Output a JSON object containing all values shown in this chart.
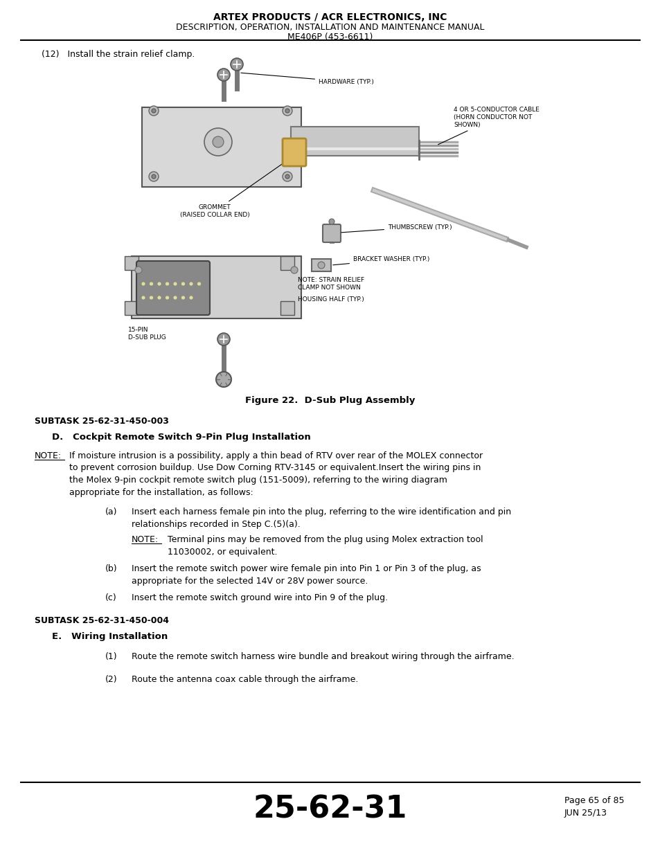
{
  "header_line1": "ARTEX PRODUCTS / ACR ELECTRONICS, INC",
  "header_line2": "DESCRIPTION, OPERATION, INSTALLATION AND MAINTENANCE MANUAL",
  "header_line3": "ME406P (453-6611)",
  "intro_text": "(12)   Install the strain relief clamp.",
  "figure_caption": "Figure 22.  D-Sub Plug Assembly",
  "subtask1": "SUBTASK 25-62-31-450-003",
  "section_d_title": "D.   Cockpit Remote Switch 9-Pin Plug Installation",
  "note1_text": "If moisture intrusion is a possibility, apply a thin bead of RTV over rear of the MOLEX connector\nto prevent corrosion buildup. Use Dow Corning RTV-3145 or equivalent.Insert the wiring pins in\nthe Molex 9-pin cockpit remote switch plug (151-5009), referring to the wiring diagram\nappropriate for the installation, as follows:",
  "item_a_label": "(a)",
  "item_a_text": "Insert each harness female pin into the plug, referring to the wire identification and pin\nrelationships recorded in Step C.(5)(a).",
  "note2_text": "Terminal pins may be removed from the plug using Molex extraction tool\n11030002, or equivalent.",
  "item_b_label": "(b)",
  "item_b_text": "Insert the remote switch power wire female pin into Pin 1 or Pin 3 of the plug, as\nappropriate for the selected 14V or 28V power source.",
  "item_c_label": "(c)",
  "item_c_text": "Insert the remote switch ground wire into Pin 9 of the plug.",
  "subtask2": "SUBTASK 25-62-31-450-004",
  "section_e_title": "E.   Wiring Installation",
  "item_1_label": "(1)",
  "item_1_text": "Route the remote switch harness wire bundle and breakout wiring through the airframe.",
  "item_2_label": "(2)",
  "item_2_text": "Route the antenna coax cable through the airframe.",
  "footer_number": "25-62-31",
  "footer_page": "Page 65 of 85",
  "footer_date": "JUN 25/13",
  "bg_color": "#ffffff",
  "text_color": "#000000",
  "label_hardware": "HARDWARE (TYP.)",
  "label_cable": "4 OR 5-CONDUCTOR CABLE\n(HORN CONDUCTOR NOT\nSHOWN)",
  "label_grommet": "GROMMET\n(RAISED COLLAR END)",
  "label_thumbscrew": "THUMBSCREW (TYP.)",
  "label_bracket": "BRACKET WASHER (TYP.)",
  "label_strain": "NOTE: STRAIN RELIEF\nCLAMP NOT SHOWN",
  "label_housing": "HOUSING HALF (TYP.)",
  "label_dsub": "15-PIN\nD-SUB PLUG"
}
